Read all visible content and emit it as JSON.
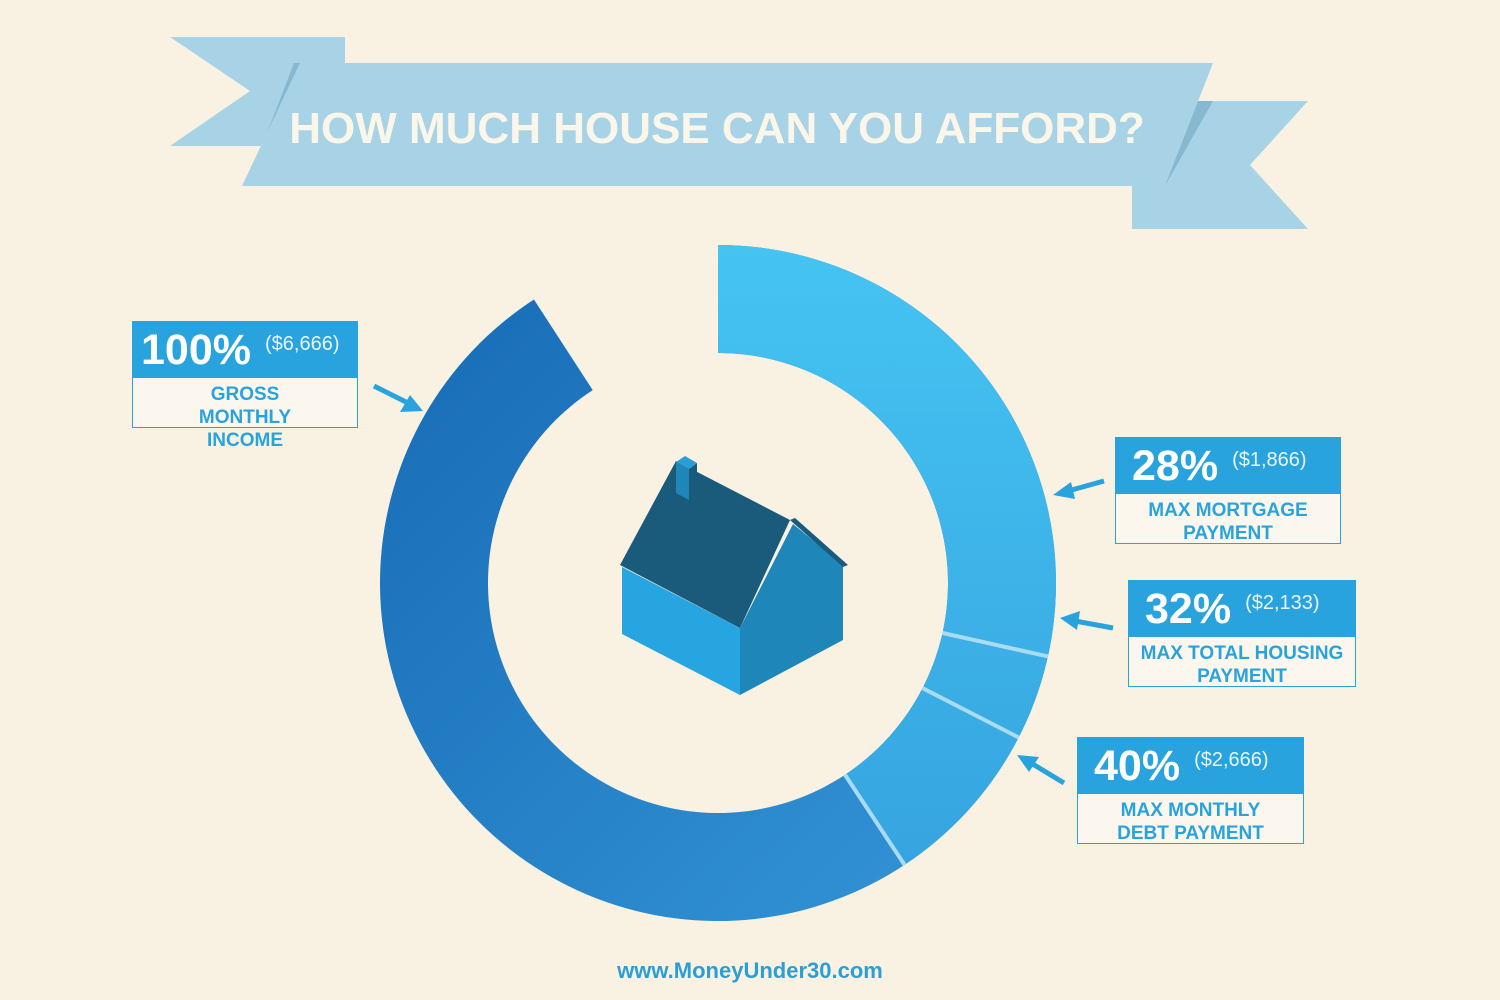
{
  "title": "HOW MUCH HOUSE CAN YOU AFFORD?",
  "footer": "www.MoneyUnder30.com",
  "colors": {
    "background": "#f9f2e3",
    "ribbon": "#a8d3e6",
    "ring_dark": "#1a72b9",
    "ring_light": "#3aaae2",
    "accent": "#29a3de",
    "house_roof": "#1a5b7b",
    "house_front": "#27a5e0",
    "house_side": "#1f86b9"
  },
  "icons": [
    "house-icon",
    "arrow-icon"
  ],
  "chart_data": {
    "type": "pie",
    "variant": "donut",
    "slices": [
      {
        "percent": "100%",
        "amount": "($6,666)",
        "label": "GROSS MONTHLY INCOME",
        "value": 100
      },
      {
        "percent": "28%",
        "amount": "($1,866)",
        "label": "MAX MORTGAGE PAYMENT",
        "value": 28
      },
      {
        "percent": "32%",
        "amount": "($2,133)",
        "label": "MAX TOTAL HOUSING PAYMENT",
        "value": 32
      },
      {
        "percent": "40%",
        "amount": "($2,666)",
        "label": "MAX MONTHLY DEBT PAYMENT",
        "value": 40
      }
    ]
  }
}
